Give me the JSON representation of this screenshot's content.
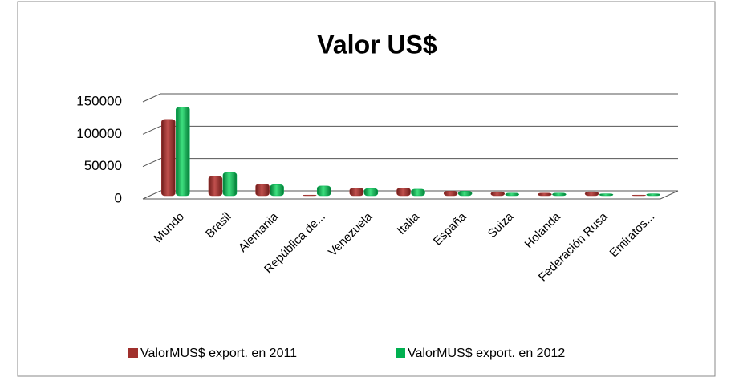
{
  "chart_data": {
    "type": "bar",
    "title": "Valor US$",
    "categories": [
      "Mundo",
      "Brasil",
      "Alemania",
      "República de...",
      "Venezuela",
      "Italia",
      "España",
      "Suiza",
      "Holanda",
      "Federación  Rusa",
      "Emiratos..."
    ],
    "series": [
      {
        "name": "ValorMUS$ export. en 2011",
        "color": "#a0302c",
        "values": [
          118000,
          30000,
          18000,
          1000,
          12000,
          12000,
          7000,
          6000,
          4000,
          6000,
          1000
        ]
      },
      {
        "name": "ValorMUS$ export. en 2012",
        "color": "#00b050",
        "values": [
          137000,
          36000,
          17000,
          15000,
          11000,
          10000,
          7000,
          4000,
          4000,
          3000,
          3000
        ]
      }
    ],
    "ylim": [
      0,
      150000
    ],
    "yticks": [
      0,
      50000,
      100000,
      150000
    ],
    "grid": true,
    "legend": "bottom"
  }
}
